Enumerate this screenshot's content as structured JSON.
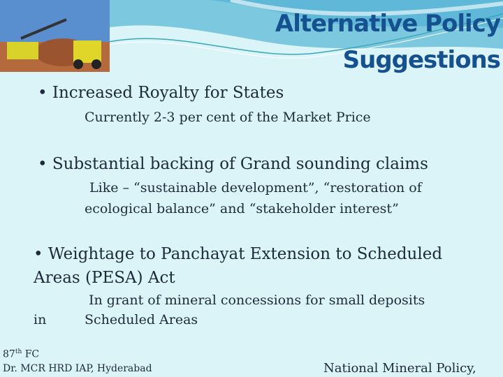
{
  "title": {
    "line1": "Alternative Policy",
    "line2": "Suggestions"
  },
  "bullets": [
    {
      "text": "Increased Royalty for States",
      "sub": [
        "Currently 2-3 per cent of the Market Price"
      ]
    },
    {
      "text": "Substantial backing of  Grand sounding claims",
      "sub": [
        "Like – “sustainable development”, “restoration of",
        "ecological balance” and “stakeholder interest”"
      ]
    },
    {
      "text": "Weightage to Panchayat Extension to Scheduled",
      "text2": "Areas (PESA) Act",
      "sub": [
        "In grant of mineral concessions for small deposits",
        "in",
        "Scheduled Areas"
      ]
    }
  ],
  "bullet_char": "•",
  "footer": {
    "left1": "87",
    "left1_sup": "th",
    "left1_rest": " FC",
    "left2": "Dr. MCR HRD IAP, Hyderabad",
    "right": "National Mineral Policy,"
  },
  "colors": {
    "background": "#daf4f8",
    "title": "#15508f"
  }
}
